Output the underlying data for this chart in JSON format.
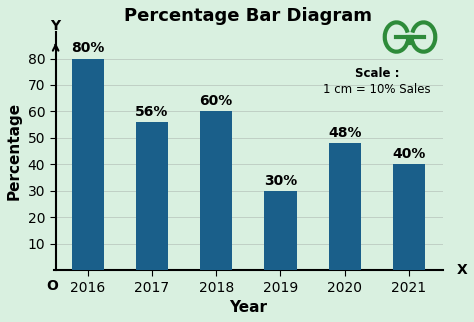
{
  "title": "Percentage Bar Diagram",
  "categories": [
    "2016",
    "2017",
    "2018",
    "2019",
    "2020",
    "2021"
  ],
  "values": [
    80,
    56,
    60,
    30,
    48,
    40
  ],
  "bar_color": "#1a5f8a",
  "background_color": "#d9f0e0",
  "xlabel": "Year",
  "ylabel": "Percentage",
  "ylim": [
    0,
    90
  ],
  "yticks": [
    10,
    20,
    30,
    40,
    50,
    60,
    70,
    80
  ],
  "scale_text_line1": "Scale :",
  "scale_text_line2": "1 cm = 10% Sales",
  "bar_label_fontsize": 10,
  "axis_label_fontsize": 11,
  "title_fontsize": 13,
  "tick_fontsize": 10,
  "origin_label": "O"
}
